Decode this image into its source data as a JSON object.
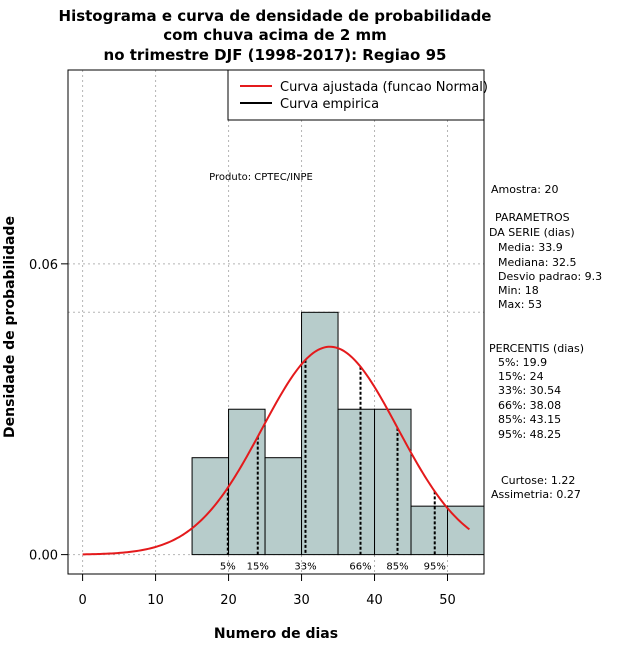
{
  "chart_data": {
    "type": "bar",
    "title_lines": [
      "Histograma e curva de densidade de probabilidade",
      "com chuva acima de 2 mm",
      "no trimestre DJF (1998-2017): Regiao 95"
    ],
    "xlabel": "Numero de dias",
    "ylabel": "Densidade de probabilidade",
    "xlim": [
      -2,
      55
    ],
    "ylim": [
      -0.004,
      0.1
    ],
    "x_ticks": [
      0,
      10,
      20,
      30,
      40,
      50
    ],
    "y_ticks": [
      0.0,
      0.06
    ],
    "y_tick_labels": [
      "0.00",
      "0.06"
    ],
    "grid": true,
    "grid_h_extra": [
      0.05
    ],
    "bins": [
      {
        "start": 15,
        "end": 20,
        "density": 0.02
      },
      {
        "start": 20,
        "end": 25,
        "density": 0.03
      },
      {
        "start": 25,
        "end": 30,
        "density": 0.02
      },
      {
        "start": 30,
        "end": 35,
        "density": 0.05
      },
      {
        "start": 35,
        "end": 40,
        "density": 0.03
      },
      {
        "start": 40,
        "end": 45,
        "density": 0.03
      },
      {
        "start": 45,
        "end": 50,
        "density": 0.01
      },
      {
        "start": 50,
        "end": 55,
        "density": 0.01
      }
    ],
    "bar_color": "#b7cccb",
    "curve_color": "#e41a1c",
    "normal_curve": {
      "mean": 33.9,
      "sd": 9.3,
      "x_from": 0,
      "x_to": 53
    },
    "legend": {
      "position": "top-right",
      "entries": [
        {
          "label": "Curva ajustada (funcao Normal)",
          "color": "#e41a1c"
        },
        {
          "label": "Curva empirica",
          "color": "#000000"
        }
      ]
    },
    "percentile_markers": [
      {
        "label": "5%",
        "x": 19.9
      },
      {
        "label": "15%",
        "x": 24
      },
      {
        "label": "33%",
        "x": 30.54
      },
      {
        "label": "66%",
        "x": 38.08
      },
      {
        "label": "85%",
        "x": 43.15
      },
      {
        "label": "95%",
        "x": 48.25
      }
    ],
    "annotation": "Produto: CPTEC/INPE"
  },
  "stats_panel": {
    "sample": "Amostra: 20",
    "params_header_1": "PARAMETROS",
    "params_header_2": "DA SERIE (dias)",
    "params": [
      "Media: 33.9",
      "Mediana: 32.5",
      "Desvio padrao: 9.3",
      "Min: 18",
      "Max: 53"
    ],
    "percentis_header": "PERCENTIS (dias)",
    "percentis": [
      "5%: 19.9",
      "15%: 24",
      "33%: 30.54",
      "66%: 38.08",
      "85%: 43.15",
      "95%: 48.25"
    ],
    "curtose": "Curtose: 1.22",
    "assimetria": "Assimetria: 0.27"
  }
}
